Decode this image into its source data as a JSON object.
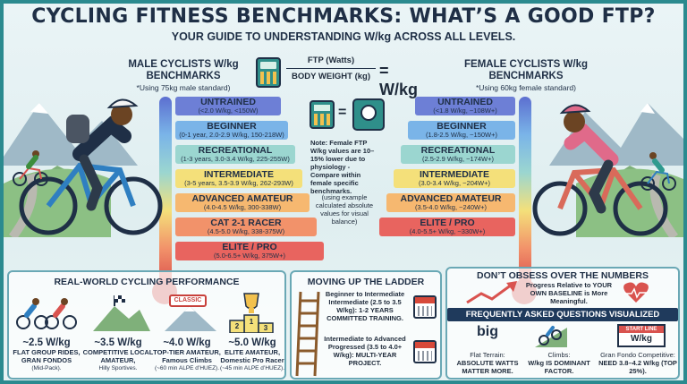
{
  "title": "CYCLING FITNESS BENCHMARKS: WHAT’S A GOOD FTP?",
  "subtitle": "YOUR GUIDE TO UNDERSTANDING W/kg ACROSS ALL LEVELS.",
  "male": {
    "heading": "MALE CYCLISTS W/kg BENCHMARKS",
    "note": "*Using 75kg male standard)",
    "levels": [
      {
        "label": "UNTRAINED",
        "range": "(<2.0 W/kg, <150W)",
        "color": "#6d7fd6"
      },
      {
        "label": "BEGINNER",
        "range": "(0-1 year, 2.0-2.9 W/kg, 150-218W)",
        "color": "#7ab4e8"
      },
      {
        "label": "RECREATIONAL",
        "range": "(1-3 years, 3.0-3.4 W/kg, 225-255W)",
        "color": "#9bd6d0"
      },
      {
        "label": "INTERMEDIATE",
        "range": "(3-5 years, 3.5-3.9 W/kg, 262-293W)",
        "color": "#f4e07a"
      },
      {
        "label": "ADVANCED AMATEUR",
        "range": "(4.0-4.5 W/kg, 300-338W)",
        "color": "#f6b870"
      },
      {
        "label": "CAT 2-1 RACER",
        "range": "(4.5-5.0 W/kg, 338-375W)",
        "color": "#f2926a"
      },
      {
        "label": "ELITE / PRO",
        "range": "(5.0-6.5+ W/kg, 375W+)",
        "color": "#e8645f"
      }
    ]
  },
  "female": {
    "heading": "FEMALE CYCLISTS W/kg BENCHMARKS",
    "note": "*Using 60kg female standard)",
    "levels": [
      {
        "label": "UNTRAINED",
        "range": "(<1.8 W/kg, ~108W+)",
        "color": "#6d7fd6"
      },
      {
        "label": "BEGINNER",
        "range": "(1.8-2.5 W/kg, ~150W+)",
        "color": "#7ab4e8"
      },
      {
        "label": "RECREATIONAL",
        "range": "(2.5-2.9 W/kg, ~174W+)",
        "color": "#9bd6d0"
      },
      {
        "label": "INTERMEDIATE",
        "range": "(3.0-3.4 W/kg, ~204W+)",
        "color": "#f4e07a"
      },
      {
        "label": "ADVANCED AMATEUR",
        "range": "(3.5-4.0 W/kg, ~240W+)",
        "color": "#f6b870"
      },
      {
        "label": "ELITE / PRO",
        "range": "(4.0-5.5+ W/kg, ~330W+)",
        "color": "#e8645f"
      }
    ]
  },
  "formula": {
    "numerator": "FTP (Watts)",
    "denominator": "BODY WEIGHT (kg)",
    "result": "= W/kg",
    "equals": "="
  },
  "center_note": "Note: Female FTP W/kg values are 10–15% lower due to physiology - Compare within female specific benchmarks.",
  "center_note2": "(using example calculated absolute values for visual balance)",
  "performance": {
    "title": "REAL-WORLD CYCLING PERFORMANCE",
    "items": [
      {
        "value": "~2.5 W/kg",
        "desc": "FLAT GROUP RIDES, GRAN FONDOS",
        "detail": "(Mid-Pack)."
      },
      {
        "value": "~3.5 W/kg",
        "desc": "COMPETITIVE LOCAL AMATEUR,",
        "detail": "Hilly Sportives."
      },
      {
        "value": "~4.0 W/kg",
        "desc": "TOP-TIER AMATEUR, Famous Climbs",
        "detail": "(~60 min ALPE d’HUEZ)."
      },
      {
        "value": "~5.0 W/kg",
        "desc": "ELITE AMATEUR, Domestic Pro Racer",
        "detail": "(~45 min ALPE d’HUEZ)."
      }
    ],
    "classic_sign": "CLASSIC",
    "podium": [
      "2",
      "1",
      "3"
    ]
  },
  "ladder": {
    "title": "MOVING UP THE LADDER",
    "step1": "Beginner to Intermediate Intermediate (2.5 to 3.5 W/kg): 1-2 YEARS COMMITTED TRAINING.",
    "step2": "Intermediate to Advanced Progressed (3.5 to 4.0+ W/kg): MULTI-YEAR PROJECT."
  },
  "obsess": {
    "title": "DON’T OBSESS OVER THE NUMBERS",
    "text": "Progress Relative to YOUR OWN BASELINE is More Meaningful."
  },
  "faq": {
    "title": "FREQUENTLY ASKED QUESTIONS VISUALIZED",
    "items": [
      {
        "icon": "big",
        "head": "Flat Terrain:",
        "text": "ABSOLUTE WATTS MATTER MORE."
      },
      {
        "icon": "",
        "head": "Climbs:",
        "text": "W/kg IS DOMINANT FACTOR."
      },
      {
        "icon": "W/kg",
        "head": "Gran Fondo Competitive:",
        "text": "NEED 3.8–4.2 W/kg (TOP 25%)."
      }
    ],
    "start_line": "START LINE"
  }
}
